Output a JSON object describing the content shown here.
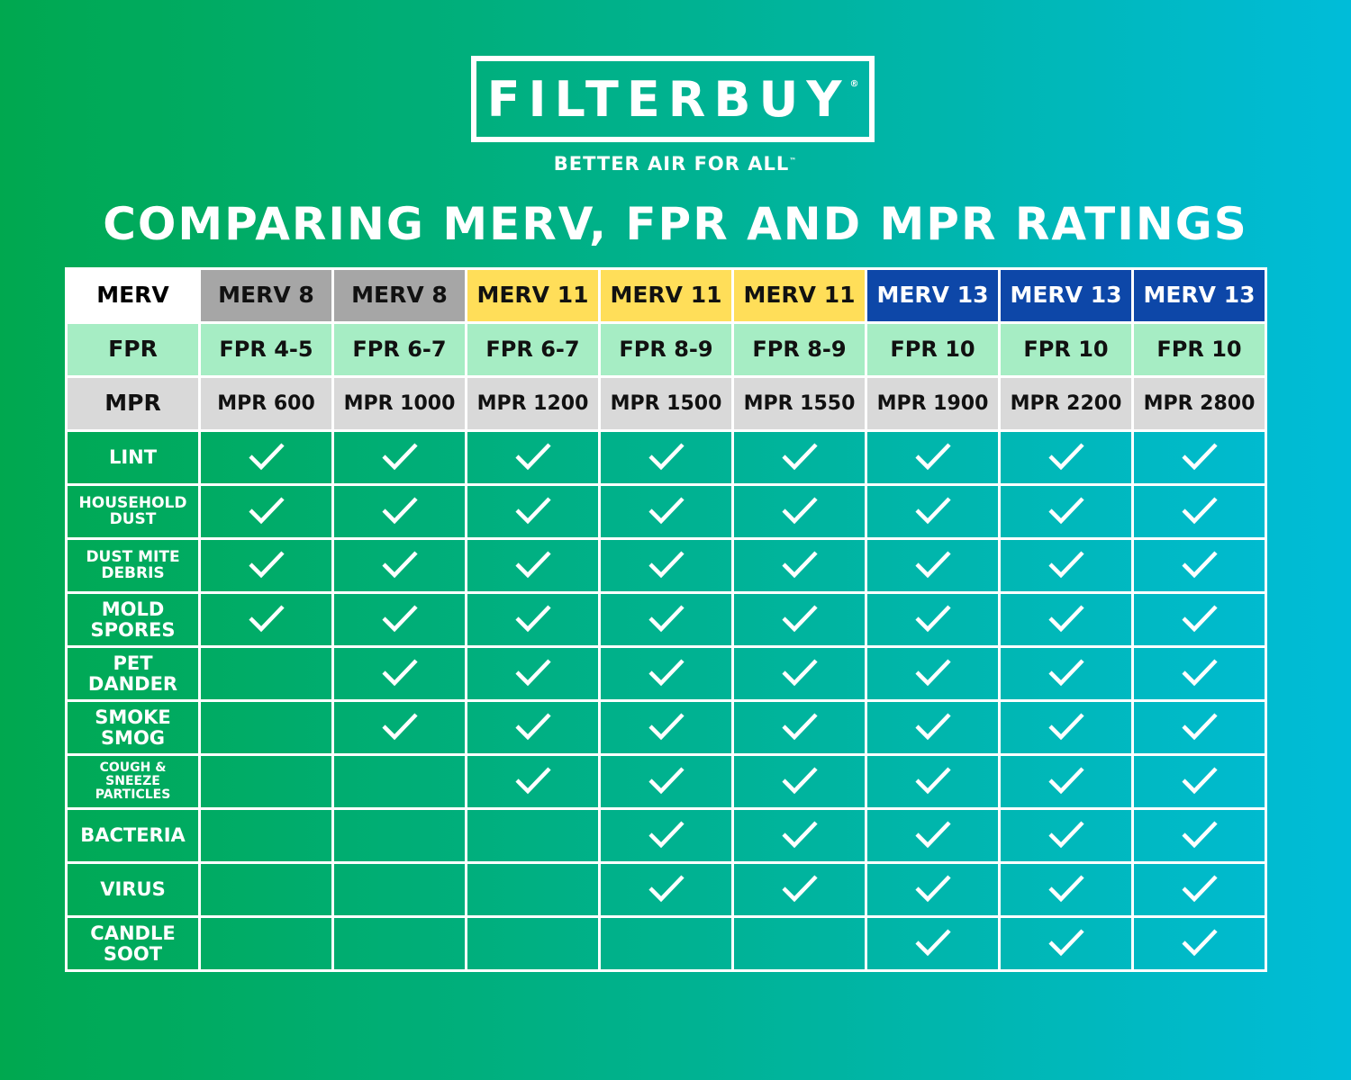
{
  "header": {
    "logo": "FILTERBUY",
    "logo_mark": "®",
    "tagline": "BETTER AIR FOR ALL",
    "tagline_mark": "™",
    "title": "COMPARING MERV, FPR AND MPR RATINGS"
  },
  "table": {
    "ratings": [
      {
        "label": "MERV",
        "values": [
          "MERV 8",
          "MERV 8",
          "MERV 11",
          "MERV 11",
          "MERV 11",
          "MERV 13",
          "MERV 13",
          "MERV 13"
        ]
      },
      {
        "label": "FPR",
        "values": [
          "FPR 4-5",
          "FPR 6-7",
          "FPR 6-7",
          "FPR 8-9",
          "FPR 8-9",
          "FPR 10",
          "FPR 10",
          "FPR 10"
        ]
      },
      {
        "label": "MPR",
        "values": [
          "MPR 600",
          "MPR 1000",
          "MPR 1200",
          "MPR 1500",
          "MPR 1550",
          "MPR 1900",
          "MPR 2200",
          "MPR 2800"
        ]
      }
    ],
    "rows": [
      {
        "label": "LINT",
        "checks": [
          true,
          true,
          true,
          true,
          true,
          true,
          true,
          true
        ]
      },
      {
        "label": "HOUSEHOLD\nDUST",
        "checks": [
          true,
          true,
          true,
          true,
          true,
          true,
          true,
          true
        ]
      },
      {
        "label": "DUST MITE\nDEBRIS",
        "checks": [
          true,
          true,
          true,
          true,
          true,
          true,
          true,
          true
        ]
      },
      {
        "label": "MOLD\nSPORES",
        "checks": [
          true,
          true,
          true,
          true,
          true,
          true,
          true,
          true
        ]
      },
      {
        "label": "PET\nDANDER",
        "checks": [
          false,
          true,
          true,
          true,
          true,
          true,
          true,
          true
        ]
      },
      {
        "label": "SMOKE\nSMOG",
        "checks": [
          false,
          true,
          true,
          true,
          true,
          true,
          true,
          true
        ]
      },
      {
        "label": "COUGH &\nSNEEZE\nPARTICLES",
        "checks": [
          false,
          false,
          true,
          true,
          true,
          true,
          true,
          true
        ]
      },
      {
        "label": "BACTERIA",
        "checks": [
          false,
          false,
          false,
          true,
          true,
          true,
          true,
          true
        ]
      },
      {
        "label": "VIRUS",
        "checks": [
          false,
          false,
          false,
          true,
          true,
          true,
          true,
          true
        ]
      },
      {
        "label": "CANDLE\nSOOT",
        "checks": [
          false,
          false,
          false,
          false,
          false,
          true,
          true,
          true
        ]
      }
    ]
  }
}
